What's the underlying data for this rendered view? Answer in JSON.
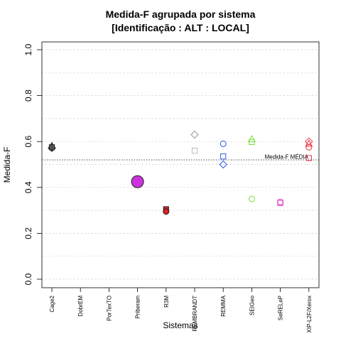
{
  "chart_data": {
    "type": "scatter",
    "title_line1": "Medida-F agrupada por sistema",
    "title_line2": "[Identificação : ALT : LOCAL]",
    "xlabel": "Sistemas",
    "ylabel": "Medida-F",
    "ylim": [
      0,
      1
    ],
    "yticks": [
      "0.0",
      "0.2",
      "0.4",
      "0.6",
      "0.8",
      "1.0"
    ],
    "grid": "horizontal-dotted",
    "categories": [
      "Cage2",
      "DobrEM",
      "PorTexTO",
      "Priberam",
      "R3M",
      "REMBRANDT",
      "REMMA",
      "SEIGeo",
      "SeRELeP",
      "XIP-L2F/Xerox"
    ],
    "reference_line": {
      "label": "Medida-F MÉDIA",
      "value": 0.52
    },
    "points": [
      {
        "category": "Cage2",
        "y": 0.58,
        "shape": "triangle",
        "color": "#555555",
        "filled": true
      },
      {
        "category": "Cage2",
        "y": 0.573,
        "shape": "circle",
        "color": "#555555",
        "filled": true
      },
      {
        "category": "Cage2",
        "y": 0.572,
        "shape": "diamond",
        "color": "#555555",
        "filled": true
      },
      {
        "category": "Cage2",
        "y": 0.575,
        "shape": "square",
        "color": "#555555",
        "filled": true
      },
      {
        "category": "Priberam",
        "y": 0.425,
        "shape": "circle-large",
        "color": "#cc33dd",
        "filled": true
      },
      {
        "category": "R3M",
        "y": 0.305,
        "shape": "square",
        "color": "#dd2222",
        "filled": true
      },
      {
        "category": "R3M",
        "y": 0.295,
        "shape": "circle",
        "color": "#dd2222",
        "filled": true
      },
      {
        "category": "REMBRANDT",
        "y": 0.63,
        "shape": "diamond",
        "color": "#999999",
        "filled": false
      },
      {
        "category": "REMBRANDT",
        "y": 0.56,
        "shape": "square",
        "color": "#bbbbbb",
        "filled": false
      },
      {
        "category": "REMMA",
        "y": 0.59,
        "shape": "circle",
        "color": "#3355ee",
        "filled": false
      },
      {
        "category": "REMMA",
        "y": 0.535,
        "shape": "square",
        "color": "#3355ee",
        "filled": false
      },
      {
        "category": "REMMA",
        "y": 0.5,
        "shape": "diamond",
        "color": "#3355ee",
        "filled": false
      },
      {
        "category": "SEIGeo",
        "y": 0.61,
        "shape": "triangle",
        "color": "#77dd33",
        "filled": false
      },
      {
        "category": "SEIGeo",
        "y": 0.598,
        "shape": "square",
        "color": "#77dd33",
        "filled": false
      },
      {
        "category": "SEIGeo",
        "y": 0.35,
        "shape": "circle",
        "color": "#77dd33",
        "filled": false
      },
      {
        "category": "SeRELeP",
        "y": 0.337,
        "shape": "circle",
        "color": "#dd33cc",
        "filled": false
      },
      {
        "category": "SeRELeP",
        "y": 0.332,
        "shape": "square",
        "color": "#dd33cc",
        "filled": false
      },
      {
        "category": "XIP-L2F/Xerox",
        "y": 0.6,
        "shape": "diamond",
        "color": "#ee3344",
        "filled": false
      },
      {
        "category": "XIP-L2F/Xerox",
        "y": 0.59,
        "shape": "triangle",
        "color": "#ee3344",
        "filled": false
      },
      {
        "category": "XIP-L2F/Xerox",
        "y": 0.575,
        "shape": "circle",
        "color": "#ee3344",
        "filled": false
      },
      {
        "category": "XIP-L2F/Xerox",
        "y": 0.528,
        "shape": "square",
        "color": "#ee3344",
        "filled": false
      }
    ]
  }
}
